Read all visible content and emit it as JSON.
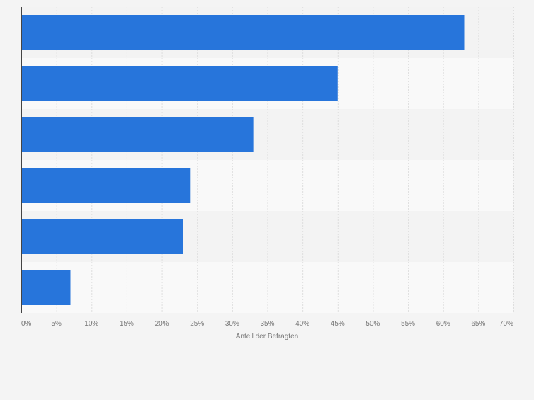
{
  "chart_data": {
    "type": "bar",
    "orientation": "horizontal",
    "categories": [
      "",
      "",
      "",
      "",
      "",
      ""
    ],
    "values": [
      63,
      45,
      33,
      24,
      23,
      7
    ],
    "xlabel": "Anteil der Befragten",
    "ylabel": "",
    "xlim": [
      0,
      70
    ],
    "xticks": [
      0,
      5,
      10,
      15,
      20,
      25,
      30,
      35,
      40,
      45,
      50,
      55,
      60,
      65,
      70
    ],
    "xtick_labels": [
      "0%",
      "5%",
      "10%",
      "15%",
      "20%",
      "25%",
      "30%",
      "35%",
      "40%",
      "45%",
      "50%",
      "55%",
      "60%",
      "65%",
      "70%"
    ],
    "grid": true,
    "legend": "none",
    "colors": {
      "bar": "#2775db",
      "page_background": "#f4f4f4",
      "band_light": "#f9f9f9",
      "band_dark": "#f3f3f3",
      "grid": "#dedede",
      "axis": "#444444",
      "tick_text": "#777777"
    }
  }
}
